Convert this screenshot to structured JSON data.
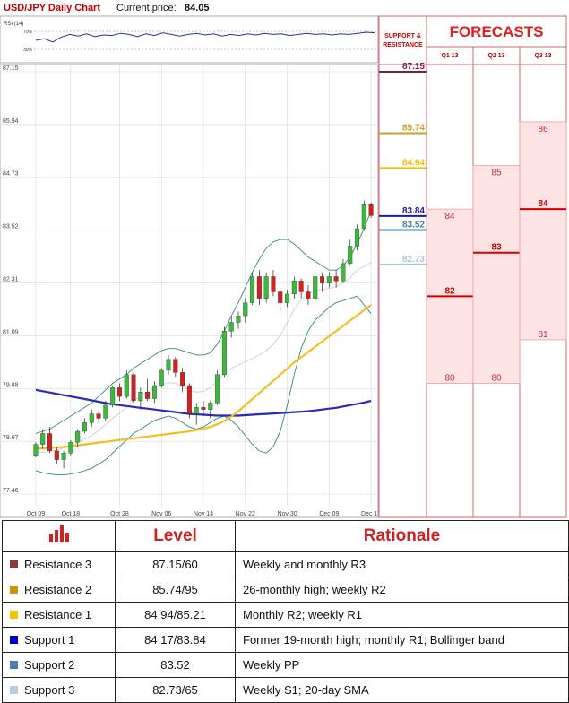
{
  "header": {
    "title": "USD/JPY Daily Chart",
    "price_label": "Current price:",
    "price_value": "84.05"
  },
  "rsi": {
    "label": "RSI (14)",
    "upper_label": "70%",
    "lower_label": "30%",
    "values": [
      55,
      58,
      52,
      61,
      66,
      63,
      67,
      62,
      65,
      64,
      68,
      66,
      62,
      67,
      64,
      69,
      66,
      63,
      66,
      68,
      65,
      67,
      63,
      66,
      64,
      67,
      65,
      68,
      66,
      67,
      64,
      66,
      68,
      66,
      67,
      65,
      67,
      66,
      68,
      70,
      69
    ]
  },
  "sr_panel": {
    "title_line1": "SUPPORT &",
    "title_line2": "RESISTANCE"
  },
  "forecast_panel": {
    "title": "FORECASTS",
    "columns": [
      "Q1 13",
      "Q2 13",
      "Q3 13"
    ],
    "bands": [
      {
        "low": 80,
        "high": 84,
        "mid": 82,
        "low_label": "80",
        "high_label": "84",
        "mid_label": "82"
      },
      {
        "low": 80,
        "high": 85,
        "mid": 83,
        "low_label": "80",
        "high_label": "85",
        "mid_label": "83"
      },
      {
        "low": 81,
        "high": 86,
        "mid": 84,
        "low_label": "81",
        "high_label": "86",
        "mid_label": "84"
      }
    ]
  },
  "chart_data": {
    "type": "candlestick",
    "title": "USD/JPY Daily Chart",
    "y_ticks": [
      "87.15",
      "85.94",
      "84.73",
      "83.52",
      "82.31",
      "81.09",
      "79.88",
      "78.67",
      "77.46"
    ],
    "ylim": [
      77.46,
      87.15
    ],
    "x_ticks": [
      "Oct 09",
      "Oct 18",
      "Oct 28",
      "Nov 06",
      "Nov 14",
      "Nov 22",
      "Nov 30",
      "Dec 09",
      "Dec 17"
    ],
    "x_tick_index": [
      0,
      5,
      12,
      18,
      24,
      30,
      36,
      42,
      48
    ],
    "candles": [
      [
        78.35,
        78.65,
        78.3,
        78.6
      ],
      [
        78.6,
        78.95,
        78.5,
        78.85
      ],
      [
        78.85,
        79.0,
        78.4,
        78.45
      ],
      [
        78.45,
        78.55,
        78.15,
        78.25
      ],
      [
        78.25,
        78.45,
        78.05,
        78.4
      ],
      [
        78.4,
        78.7,
        78.35,
        78.65
      ],
      [
        78.65,
        78.95,
        78.55,
        78.9
      ],
      [
        78.9,
        79.2,
        78.85,
        79.1
      ],
      [
        79.1,
        79.4,
        79.0,
        79.3
      ],
      [
        79.3,
        79.35,
        79.1,
        79.2
      ],
      [
        79.2,
        79.6,
        79.15,
        79.5
      ],
      [
        79.5,
        79.95,
        79.45,
        79.9
      ],
      [
        79.9,
        80.0,
        79.6,
        79.7
      ],
      [
        79.7,
        80.3,
        79.65,
        80.2
      ],
      [
        80.2,
        80.25,
        79.55,
        79.6
      ],
      [
        79.6,
        79.9,
        79.4,
        79.8
      ],
      [
        79.8,
        80.1,
        79.6,
        79.65
      ],
      [
        79.65,
        80.05,
        79.55,
        79.95
      ],
      [
        79.95,
        80.35,
        79.9,
        80.3
      ],
      [
        80.3,
        80.65,
        80.2,
        80.55
      ],
      [
        80.55,
        80.6,
        80.15,
        80.25
      ],
      [
        80.25,
        80.35,
        79.8,
        79.95
      ],
      [
        79.95,
        80.0,
        79.2,
        79.3
      ],
      [
        79.3,
        79.55,
        79.05,
        79.45
      ],
      [
        79.45,
        79.6,
        79.25,
        79.4
      ],
      [
        79.4,
        79.6,
        79.2,
        79.55
      ],
      [
        79.55,
        80.3,
        79.5,
        80.2
      ],
      [
        80.2,
        81.3,
        80.15,
        81.2
      ],
      [
        81.2,
        81.55,
        81.05,
        81.4
      ],
      [
        81.4,
        81.65,
        81.25,
        81.55
      ],
      [
        81.55,
        81.95,
        81.4,
        81.85
      ],
      [
        81.85,
        82.55,
        81.8,
        82.45
      ],
      [
        82.45,
        82.6,
        81.8,
        81.95
      ],
      [
        81.95,
        82.55,
        81.85,
        82.45
      ],
      [
        82.45,
        82.6,
        82.0,
        82.1
      ],
      [
        82.1,
        82.15,
        81.65,
        81.85
      ],
      [
        81.85,
        82.15,
        81.75,
        82.05
      ],
      [
        82.05,
        82.45,
        81.95,
        82.35
      ],
      [
        82.35,
        82.4,
        81.95,
        82.1
      ],
      [
        82.1,
        82.25,
        81.8,
        81.95
      ],
      [
        81.95,
        82.55,
        81.85,
        82.45
      ],
      [
        82.45,
        82.55,
        82.1,
        82.3
      ],
      [
        82.3,
        82.55,
        82.2,
        82.45
      ],
      [
        82.45,
        82.6,
        82.2,
        82.35
      ],
      [
        82.35,
        82.85,
        82.3,
        82.75
      ],
      [
        82.75,
        83.3,
        82.7,
        83.15
      ],
      [
        83.15,
        83.65,
        83.05,
        83.55
      ],
      [
        83.55,
        84.2,
        83.5,
        84.1
      ],
      [
        84.1,
        84.15,
        83.8,
        83.85
      ]
    ],
    "sma_200": [
      79.85,
      79.82,
      79.79,
      79.76,
      79.73,
      79.7,
      79.67,
      79.64,
      79.61,
      79.58,
      79.55,
      79.52,
      79.5,
      79.48,
      79.46,
      79.44,
      79.42,
      79.4,
      79.38,
      79.36,
      79.34,
      79.32,
      79.3,
      79.29,
      79.28,
      79.27,
      79.26,
      79.26,
      79.26,
      79.26,
      79.27,
      79.28,
      79.29,
      79.3,
      79.31,
      79.32,
      79.33,
      79.34,
      79.35,
      79.36,
      79.38,
      79.4,
      79.42,
      79.44,
      79.47,
      79.5,
      79.53,
      79.56,
      79.6
    ],
    "sma_50": [
      78.5,
      78.51,
      78.52,
      78.53,
      78.54,
      78.56,
      78.58,
      78.6,
      78.62,
      78.64,
      78.66,
      78.68,
      78.7,
      78.72,
      78.74,
      78.76,
      78.78,
      78.8,
      78.82,
      78.84,
      78.86,
      78.88,
      78.9,
      78.93,
      78.96,
      79.0,
      79.06,
      79.14,
      79.24,
      79.36,
      79.5,
      79.64,
      79.78,
      79.92,
      80.06,
      80.2,
      80.34,
      80.48,
      80.6,
      80.72,
      80.84,
      80.96,
      81.08,
      81.2,
      81.32,
      81.44,
      81.56,
      81.68,
      81.8
    ],
    "boll_upper": [
      78.85,
      78.9,
      78.95,
      79.05,
      79.15,
      79.25,
      79.35,
      79.45,
      79.55,
      79.7,
      79.85,
      80.0,
      80.1,
      80.2,
      80.35,
      80.45,
      80.55,
      80.65,
      80.75,
      80.8,
      80.8,
      80.75,
      80.7,
      80.65,
      80.65,
      80.7,
      80.9,
      81.2,
      81.55,
      81.85,
      82.2,
      82.55,
      82.85,
      83.1,
      83.25,
      83.3,
      83.3,
      83.2,
      83.05,
      82.9,
      82.8,
      82.7,
      82.6,
      82.6,
      82.7,
      82.9,
      83.2,
      83.55,
      83.95
    ],
    "boll_lower": [
      78.0,
      77.95,
      77.92,
      77.9,
      77.9,
      77.92,
      77.95,
      78.0,
      78.05,
      78.15,
      78.25,
      78.4,
      78.55,
      78.7,
      78.85,
      78.95,
      79.05,
      79.15,
      79.2,
      79.25,
      79.2,
      79.1,
      79.0,
      78.95,
      79.0,
      79.1,
      79.2,
      79.25,
      79.15,
      79.0,
      78.8,
      78.6,
      78.45,
      78.4,
      78.55,
      78.9,
      79.5,
      80.2,
      80.8,
      81.2,
      81.45,
      81.6,
      81.75,
      81.85,
      81.9,
      81.95,
      82.0,
      81.8,
      81.6
    ],
    "boll_mid": [
      78.42,
      78.42,
      78.43,
      78.47,
      78.52,
      78.58,
      78.65,
      78.72,
      78.8,
      78.92,
      79.05,
      79.2,
      79.32,
      79.45,
      79.6,
      79.7,
      79.8,
      79.9,
      79.97,
      80.02,
      80.0,
      79.93,
      79.85,
      79.8,
      79.82,
      79.9,
      80.05,
      80.22,
      80.35,
      80.42,
      80.5,
      80.57,
      80.65,
      80.75,
      80.9,
      81.1,
      81.4,
      81.7,
      81.92,
      82.05,
      82.12,
      82.15,
      82.18,
      82.22,
      82.3,
      82.42,
      82.6,
      82.68,
      82.78
    ]
  },
  "sr_lines": [
    {
      "value": 87.15,
      "label": "87.15",
      "color": "#7a1f3d"
    },
    {
      "value": 85.74,
      "label": "85.74",
      "color": "#c9a227"
    },
    {
      "value": 84.94,
      "label": "84.94",
      "color": "#f0c000"
    },
    {
      "value": 83.84,
      "label": "83.84",
      "color": "#1a1aa6"
    },
    {
      "value": 83.52,
      "label": "83.52",
      "color": "#3f7fa8"
    },
    {
      "value": 82.73,
      "label": "82.73",
      "color": "#a8c8d0"
    }
  ],
  "table": {
    "headers": [
      "",
      "Level",
      "Rationale"
    ],
    "rows": [
      {
        "name": "Resistance 3",
        "level": "87.15/60",
        "rationale": "Weekly and monthly R3",
        "color": "#8b3a3a"
      },
      {
        "name": "Resistance 2",
        "level": "85.74/95",
        "rationale": "26-monthly high; weekly R2",
        "color": "#c8960c"
      },
      {
        "name": "Resistance 1",
        "level": "84.94/85.21",
        "rationale": "Monthly R2; weekly R1",
        "color": "#f5c400"
      },
      {
        "name": "Support 1",
        "level": "84.17/83.84",
        "rationale": "Former 19-month high; monthly R1; Bollinger band",
        "color": "#0000cc"
      },
      {
        "name": "Support 2",
        "level": "83.52",
        "rationale": "Weekly PP",
        "color": "#4a7fb0"
      },
      {
        "name": "Support 3",
        "level": "82.73/65",
        "rationale": "Weekly S1; 20-day SMA",
        "color": "#b8cce4"
      }
    ]
  }
}
